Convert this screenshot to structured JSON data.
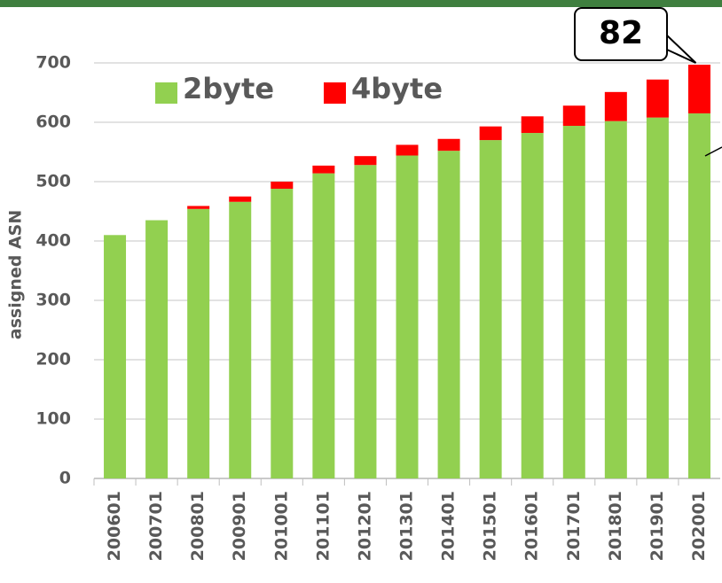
{
  "chart_data": {
    "type": "stacked_bar",
    "y_label": "assigned ASN",
    "categories": [
      "200601",
      "200701",
      "200801",
      "200901",
      "201001",
      "201101",
      "201201",
      "201301",
      "201401",
      "201501",
      "201601",
      "201701",
      "201801",
      "201901",
      "202001"
    ],
    "series": [
      {
        "name": "2byte",
        "color": "#92d050",
        "values": [
          410,
          435,
          454,
          466,
          488,
          514,
          528,
          544,
          552,
          570,
          582,
          594,
          602,
          608,
          615
        ]
      },
      {
        "name": "4byte",
        "color": "#ff0000",
        "values": [
          0,
          0,
          5,
          9,
          12,
          13,
          15,
          18,
          20,
          23,
          28,
          34,
          49,
          64,
          82
        ]
      }
    ],
    "ylim": [
      0,
      700
    ],
    "yticks": [
      0,
      100,
      200,
      300,
      400,
      500,
      600,
      700
    ],
    "grid": true
  }
}
